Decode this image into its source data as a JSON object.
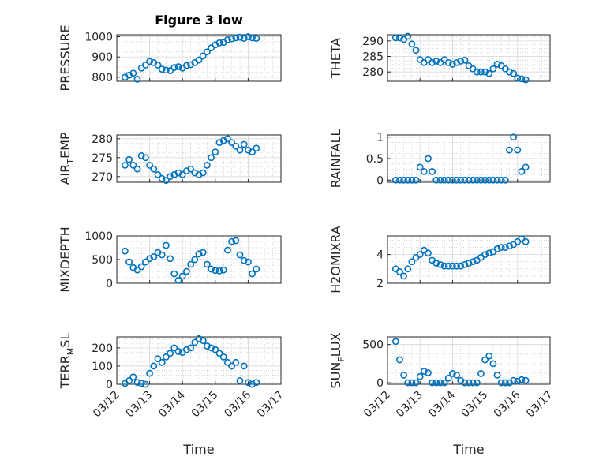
{
  "figure": {
    "title": "Figure 3 low"
  },
  "colors": {
    "series": "#0072BD"
  },
  "chart_data": [
    {
      "type": "scatter",
      "ylabel_main": "PRESSURE",
      "ylabel_sub": "",
      "ylabel_tail": "",
      "ylim": [
        780,
        1010
      ],
      "yticks": [
        800,
        900,
        1000
      ],
      "yticklabels": [
        "800",
        "900",
        "1000"
      ],
      "x": [
        "2013-03-12 06:00",
        "2013-03-12 09:00",
        "2013-03-12 12:00",
        "2013-03-12 15:00",
        "2013-03-12 18:00",
        "2013-03-12 21:00",
        "2013-03-13 00:00",
        "2013-03-13 03:00",
        "2013-03-13 06:00",
        "2013-03-13 09:00",
        "2013-03-13 12:00",
        "2013-03-13 15:00",
        "2013-03-13 18:00",
        "2013-03-13 21:00",
        "2013-03-14 00:00",
        "2013-03-14 03:00",
        "2013-03-14 06:00",
        "2013-03-14 09:00",
        "2013-03-14 12:00",
        "2013-03-14 15:00",
        "2013-03-14 18:00",
        "2013-03-14 21:00",
        "2013-03-15 00:00",
        "2013-03-15 03:00",
        "2013-03-15 06:00",
        "2013-03-15 09:00",
        "2013-03-15 12:00",
        "2013-03-15 15:00",
        "2013-03-15 18:00",
        "2013-03-15 21:00",
        "2013-03-16 00:00",
        "2013-03-16 03:00",
        "2013-03-16 06:00"
      ],
      "y": [
        800,
        810,
        820,
        790,
        845,
        860,
        878,
        872,
        860,
        840,
        835,
        832,
        848,
        852,
        845,
        858,
        862,
        872,
        885,
        905,
        925,
        945,
        960,
        970,
        972,
        985,
        990,
        995,
        998,
        992,
        1000,
        995,
        992
      ]
    },
    {
      "type": "scatter",
      "ylabel_main": "THETA",
      "ylabel_sub": "",
      "ylabel_tail": "",
      "ylim": [
        277,
        292
      ],
      "yticks": [
        280,
        285,
        290
      ],
      "yticklabels": [
        "280",
        "285",
        "290"
      ],
      "x": [
        "2013-03-12 06:00",
        "2013-03-12 09:00",
        "2013-03-12 12:00",
        "2013-03-12 15:00",
        "2013-03-12 18:00",
        "2013-03-12 21:00",
        "2013-03-13 00:00",
        "2013-03-13 03:00",
        "2013-03-13 06:00",
        "2013-03-13 09:00",
        "2013-03-13 12:00",
        "2013-03-13 15:00",
        "2013-03-13 18:00",
        "2013-03-13 21:00",
        "2013-03-14 00:00",
        "2013-03-14 03:00",
        "2013-03-14 06:00",
        "2013-03-14 09:00",
        "2013-03-14 12:00",
        "2013-03-14 15:00",
        "2013-03-14 18:00",
        "2013-03-14 21:00",
        "2013-03-15 00:00",
        "2013-03-15 03:00",
        "2013-03-15 06:00",
        "2013-03-15 09:00",
        "2013-03-15 12:00",
        "2013-03-15 15:00",
        "2013-03-15 18:00",
        "2013-03-15 21:00",
        "2013-03-16 00:00",
        "2013-03-16 03:00",
        "2013-03-16 06:00"
      ],
      "y": [
        291,
        291,
        290.5,
        291.5,
        289,
        287,
        284,
        283,
        284,
        283,
        283.5,
        283,
        284,
        283,
        282.5,
        283,
        283.5,
        283.8,
        282,
        281,
        280,
        280,
        280,
        279.5,
        281,
        282.5,
        282,
        281,
        280,
        279.5,
        278,
        277.8,
        277.5
      ]
    },
    {
      "type": "scatter",
      "ylabel_main": "AIR",
      "ylabel_sub": "T",
      "ylabel_tail": "EMP",
      "ylim": [
        268.5,
        281
      ],
      "yticks": [
        270,
        275,
        280
      ],
      "yticklabels": [
        "270",
        "275",
        "280"
      ],
      "x": [
        "2013-03-12 06:00",
        "2013-03-12 09:00",
        "2013-03-12 12:00",
        "2013-03-12 15:00",
        "2013-03-12 18:00",
        "2013-03-12 21:00",
        "2013-03-13 00:00",
        "2013-03-13 03:00",
        "2013-03-13 06:00",
        "2013-03-13 09:00",
        "2013-03-13 12:00",
        "2013-03-13 15:00",
        "2013-03-13 18:00",
        "2013-03-13 21:00",
        "2013-03-14 00:00",
        "2013-03-14 03:00",
        "2013-03-14 06:00",
        "2013-03-14 09:00",
        "2013-03-14 12:00",
        "2013-03-14 15:00",
        "2013-03-14 18:00",
        "2013-03-14 21:00",
        "2013-03-15 00:00",
        "2013-03-15 03:00",
        "2013-03-15 06:00",
        "2013-03-15 09:00",
        "2013-03-15 12:00",
        "2013-03-15 15:00",
        "2013-03-15 18:00",
        "2013-03-15 21:00",
        "2013-03-16 00:00",
        "2013-03-16 03:00",
        "2013-03-16 06:00"
      ],
      "y": [
        273,
        274.5,
        273,
        272,
        275.5,
        275,
        273,
        272,
        270.5,
        269.5,
        269,
        270,
        270.5,
        271,
        270.5,
        271.5,
        272,
        271,
        270.5,
        271,
        273,
        275,
        276.5,
        279,
        279.5,
        280,
        279,
        278,
        277,
        278.5,
        277,
        276.5,
        277.5
      ]
    },
    {
      "type": "scatter",
      "ylabel_main": "RAINFALL",
      "ylabel_sub": "",
      "ylabel_tail": "",
      "ylim": [
        -0.05,
        1.05
      ],
      "yticks": [
        0,
        0.5,
        1
      ],
      "yticklabels": [
        "0",
        "0.5",
        "1"
      ],
      "x": [
        "2013-03-12 06:00",
        "2013-03-12 09:00",
        "2013-03-12 12:00",
        "2013-03-12 15:00",
        "2013-03-12 18:00",
        "2013-03-12 21:00",
        "2013-03-13 00:00",
        "2013-03-13 03:00",
        "2013-03-13 06:00",
        "2013-03-13 09:00",
        "2013-03-13 12:00",
        "2013-03-13 15:00",
        "2013-03-13 18:00",
        "2013-03-13 21:00",
        "2013-03-14 00:00",
        "2013-03-14 03:00",
        "2013-03-14 06:00",
        "2013-03-14 09:00",
        "2013-03-14 12:00",
        "2013-03-14 15:00",
        "2013-03-14 18:00",
        "2013-03-14 21:00",
        "2013-03-15 00:00",
        "2013-03-15 03:00",
        "2013-03-15 06:00",
        "2013-03-15 09:00",
        "2013-03-15 12:00",
        "2013-03-15 15:00",
        "2013-03-15 18:00",
        "2013-03-15 21:00",
        "2013-03-16 00:00",
        "2013-03-16 03:00",
        "2013-03-16 06:00"
      ],
      "y": [
        0,
        0,
        0,
        0,
        0,
        0,
        0.3,
        0.2,
        0.5,
        0.2,
        0,
        0,
        0,
        0,
        0,
        0,
        0,
        0,
        0,
        0,
        0,
        0,
        0,
        0,
        0,
        0,
        0,
        0,
        0.7,
        1.0,
        0.7,
        0.2,
        0.3
      ]
    },
    {
      "type": "scatter",
      "ylabel_main": "MIXDEPTH",
      "ylabel_sub": "",
      "ylabel_tail": "",
      "ylim": [
        0,
        1000
      ],
      "yticks": [
        0,
        500,
        1000
      ],
      "yticklabels": [
        "0",
        "500",
        "1000"
      ],
      "x": [
        "2013-03-12 06:00",
        "2013-03-12 09:00",
        "2013-03-12 12:00",
        "2013-03-12 15:00",
        "2013-03-12 18:00",
        "2013-03-12 21:00",
        "2013-03-13 00:00",
        "2013-03-13 03:00",
        "2013-03-13 06:00",
        "2013-03-13 09:00",
        "2013-03-13 12:00",
        "2013-03-13 15:00",
        "2013-03-13 18:00",
        "2013-03-13 21:00",
        "2013-03-14 00:00",
        "2013-03-14 03:00",
        "2013-03-14 06:00",
        "2013-03-14 09:00",
        "2013-03-14 12:00",
        "2013-03-14 15:00",
        "2013-03-14 18:00",
        "2013-03-14 21:00",
        "2013-03-15 00:00",
        "2013-03-15 03:00",
        "2013-03-15 06:00",
        "2013-03-15 09:00",
        "2013-03-15 12:00",
        "2013-03-15 15:00",
        "2013-03-15 18:00",
        "2013-03-15 21:00",
        "2013-03-16 00:00",
        "2013-03-16 03:00",
        "2013-03-16 06:00"
      ],
      "y": [
        680,
        450,
        330,
        280,
        350,
        450,
        520,
        560,
        650,
        600,
        800,
        520,
        200,
        60,
        150,
        250,
        400,
        500,
        620,
        650,
        400,
        300,
        270,
        260,
        280,
        700,
        880,
        900,
        600,
        480,
        450,
        200,
        300
      ]
    },
    {
      "type": "scatter",
      "ylabel_main": "H2OMIXRA",
      "ylabel_sub": "",
      "ylabel_tail": "",
      "ylim": [
        2,
        5.3
      ],
      "yticks": [
        2,
        4
      ],
      "yticklabels": [
        "2",
        "4"
      ],
      "x": [
        "2013-03-12 06:00",
        "2013-03-12 09:00",
        "2013-03-12 12:00",
        "2013-03-12 15:00",
        "2013-03-12 18:00",
        "2013-03-12 21:00",
        "2013-03-13 00:00",
        "2013-03-13 03:00",
        "2013-03-13 06:00",
        "2013-03-13 09:00",
        "2013-03-13 12:00",
        "2013-03-13 15:00",
        "2013-03-13 18:00",
        "2013-03-13 21:00",
        "2013-03-14 00:00",
        "2013-03-14 03:00",
        "2013-03-14 06:00",
        "2013-03-14 09:00",
        "2013-03-14 12:00",
        "2013-03-14 15:00",
        "2013-03-14 18:00",
        "2013-03-14 21:00",
        "2013-03-15 00:00",
        "2013-03-15 03:00",
        "2013-03-15 06:00",
        "2013-03-15 09:00",
        "2013-03-15 12:00",
        "2013-03-15 15:00",
        "2013-03-15 18:00",
        "2013-03-15 21:00",
        "2013-03-16 00:00",
        "2013-03-16 03:00",
        "2013-03-16 06:00"
      ],
      "y": [
        3,
        2.8,
        2.5,
        3,
        3.5,
        3.8,
        4,
        4.3,
        4.1,
        3.6,
        3.4,
        3.3,
        3.2,
        3.2,
        3.2,
        3.2,
        3.2,
        3.3,
        3.4,
        3.5,
        3.6,
        3.8,
        4.0,
        4.1,
        4.2,
        4.4,
        4.5,
        4.5,
        4.6,
        4.7,
        4.9,
        5.1,
        4.9
      ]
    },
    {
      "type": "scatter",
      "ylabel_main": "TERR",
      "ylabel_sub": "M",
      "ylabel_tail": "SL",
      "ylim": [
        0,
        260
      ],
      "yticks": [
        0,
        100,
        200
      ],
      "yticklabels": [
        "0",
        "100",
        "200"
      ],
      "x": [
        "2013-03-12 06:00",
        "2013-03-12 09:00",
        "2013-03-12 12:00",
        "2013-03-12 15:00",
        "2013-03-12 18:00",
        "2013-03-12 21:00",
        "2013-03-13 00:00",
        "2013-03-13 03:00",
        "2013-03-13 06:00",
        "2013-03-13 09:00",
        "2013-03-13 12:00",
        "2013-03-13 15:00",
        "2013-03-13 18:00",
        "2013-03-13 21:00",
        "2013-03-14 00:00",
        "2013-03-14 03:00",
        "2013-03-14 06:00",
        "2013-03-14 09:00",
        "2013-03-14 12:00",
        "2013-03-14 15:00",
        "2013-03-14 18:00",
        "2013-03-14 21:00",
        "2013-03-15 00:00",
        "2013-03-15 03:00",
        "2013-03-15 06:00",
        "2013-03-15 09:00",
        "2013-03-15 12:00",
        "2013-03-15 15:00",
        "2013-03-15 18:00",
        "2013-03-15 21:00",
        "2013-03-16 00:00",
        "2013-03-16 03:00",
        "2013-03-16 06:00"
      ],
      "y": [
        5,
        20,
        40,
        10,
        5,
        0,
        60,
        100,
        140,
        120,
        150,
        170,
        200,
        180,
        175,
        190,
        200,
        230,
        250,
        240,
        210,
        200,
        190,
        170,
        150,
        120,
        100,
        120,
        20,
        100,
        10,
        0,
        10
      ]
    },
    {
      "type": "scatter",
      "ylabel_main": "SUN",
      "ylabel_sub": "F",
      "ylabel_tail": "LUX",
      "ylim": [
        -20,
        600
      ],
      "yticks": [
        0,
        500
      ],
      "yticklabels": [
        "0",
        "500"
      ],
      "x": [
        "2013-03-12 06:00",
        "2013-03-12 09:00",
        "2013-03-12 12:00",
        "2013-03-12 15:00",
        "2013-03-12 18:00",
        "2013-03-12 21:00",
        "2013-03-13 00:00",
        "2013-03-13 03:00",
        "2013-03-13 06:00",
        "2013-03-13 09:00",
        "2013-03-13 12:00",
        "2013-03-13 15:00",
        "2013-03-13 18:00",
        "2013-03-13 21:00",
        "2013-03-14 00:00",
        "2013-03-14 03:00",
        "2013-03-14 06:00",
        "2013-03-14 09:00",
        "2013-03-14 12:00",
        "2013-03-14 15:00",
        "2013-03-14 18:00",
        "2013-03-14 21:00",
        "2013-03-15 00:00",
        "2013-03-15 03:00",
        "2013-03-15 06:00",
        "2013-03-15 09:00",
        "2013-03-15 12:00",
        "2013-03-15 15:00",
        "2013-03-15 18:00",
        "2013-03-15 21:00",
        "2013-03-16 00:00",
        "2013-03-16 03:00",
        "2013-03-16 06:00"
      ],
      "y": [
        540,
        300,
        100,
        0,
        0,
        0,
        80,
        150,
        130,
        0,
        0,
        0,
        0,
        60,
        120,
        100,
        30,
        0,
        0,
        0,
        0,
        120,
        300,
        350,
        250,
        100,
        0,
        0,
        0,
        30,
        20,
        40,
        30
      ]
    }
  ],
  "xaxis": {
    "tick_dates": [
      "2013-03-12",
      "2013-03-13",
      "2013-03-14",
      "2013-03-15",
      "2013-03-16",
      "2013-03-17"
    ],
    "tick_labels": [
      "03/12",
      "03/13",
      "03/14",
      "03/15",
      "03/16",
      "03/17"
    ],
    "label": "Time"
  }
}
